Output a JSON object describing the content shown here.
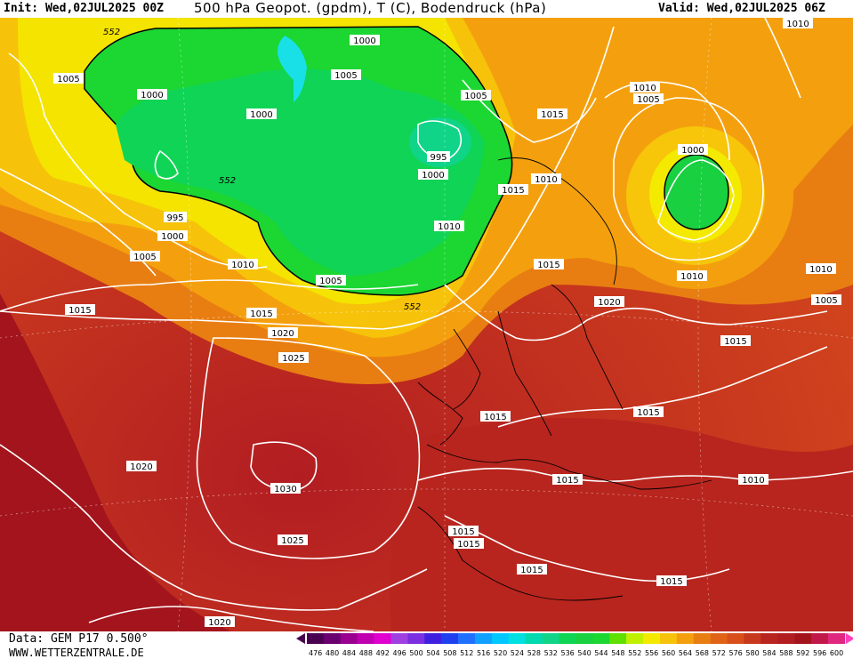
{
  "header": {
    "init": "Init: Wed,02JUL2025 00Z",
    "title": "500 hPa Geopot. (gpdm), T (C), Bodendruck (hPa)",
    "valid": "Valid: Wed,02JUL2025 06Z"
  },
  "isobar_labels": [
    {
      "text": "1000"
    },
    {
      "text": "1005"
    },
    {
      "text": "1005"
    },
    {
      "text": "1000"
    },
    {
      "text": "1000"
    },
    {
      "text": "1005"
    },
    {
      "text": "1010"
    },
    {
      "text": "1005"
    },
    {
      "text": "1010"
    },
    {
      "text": "1015"
    },
    {
      "text": "995"
    },
    {
      "text": "1000"
    },
    {
      "text": "1000"
    },
    {
      "text": "1015"
    },
    {
      "text": "1010"
    },
    {
      "text": "995"
    },
    {
      "text": "1000"
    },
    {
      "text": "1010"
    },
    {
      "text": "1005"
    },
    {
      "text": "1010"
    },
    {
      "text": "1015"
    },
    {
      "text": "1005"
    },
    {
      "text": "1010"
    },
    {
      "text": "1010"
    },
    {
      "text": "1005"
    },
    {
      "text": "1015"
    },
    {
      "text": "1015"
    },
    {
      "text": "1020"
    },
    {
      "text": "1020"
    },
    {
      "text": "1015"
    },
    {
      "text": "1025"
    },
    {
      "text": "1015"
    },
    {
      "text": "1015"
    },
    {
      "text": "1020"
    },
    {
      "text": "1015"
    },
    {
      "text": "1010"
    },
    {
      "text": "1030"
    },
    {
      "text": "1015"
    },
    {
      "text": "1025"
    },
    {
      "text": "1015"
    },
    {
      "text": "1015"
    },
    {
      "text": "1015"
    },
    {
      "text": "1020"
    }
  ],
  "geopotential_labels": [
    "552",
    "552",
    "552"
  ],
  "footer": {
    "data_source": "Data: GEM P17 0.500°",
    "website": "WWW.WETTERZENTRALE.DE"
  },
  "legend": {
    "values": [
      "476",
      "480",
      "484",
      "488",
      "492",
      "496",
      "500",
      "504",
      "508",
      "512",
      "516",
      "520",
      "524",
      "528",
      "532",
      "536",
      "540",
      "544",
      "548",
      "552",
      "556",
      "560",
      "564",
      "568",
      "572",
      "576",
      "580",
      "584",
      "588",
      "592",
      "596",
      "600"
    ],
    "colors": [
      "#4a0050",
      "#6a0070",
      "#9a0090",
      "#c000b0",
      "#e000d0",
      "#a040e0",
      "#7a30e0",
      "#4020e0",
      "#2040f0",
      "#2070ff",
      "#10a0ff",
      "#00c8ff",
      "#00e0e0",
      "#00d8b0",
      "#10d488",
      "#10d455",
      "#18d040",
      "#1cd632",
      "#60e000",
      "#c0f000",
      "#f4ea00",
      "#f6c30a",
      "#f4a00e",
      "#e87e12",
      "#e06418",
      "#d84f1c",
      "#c8381e",
      "#b8251e",
      "#b21d22",
      "#a3141c",
      "#c01848",
      "#e02880"
    ]
  }
}
